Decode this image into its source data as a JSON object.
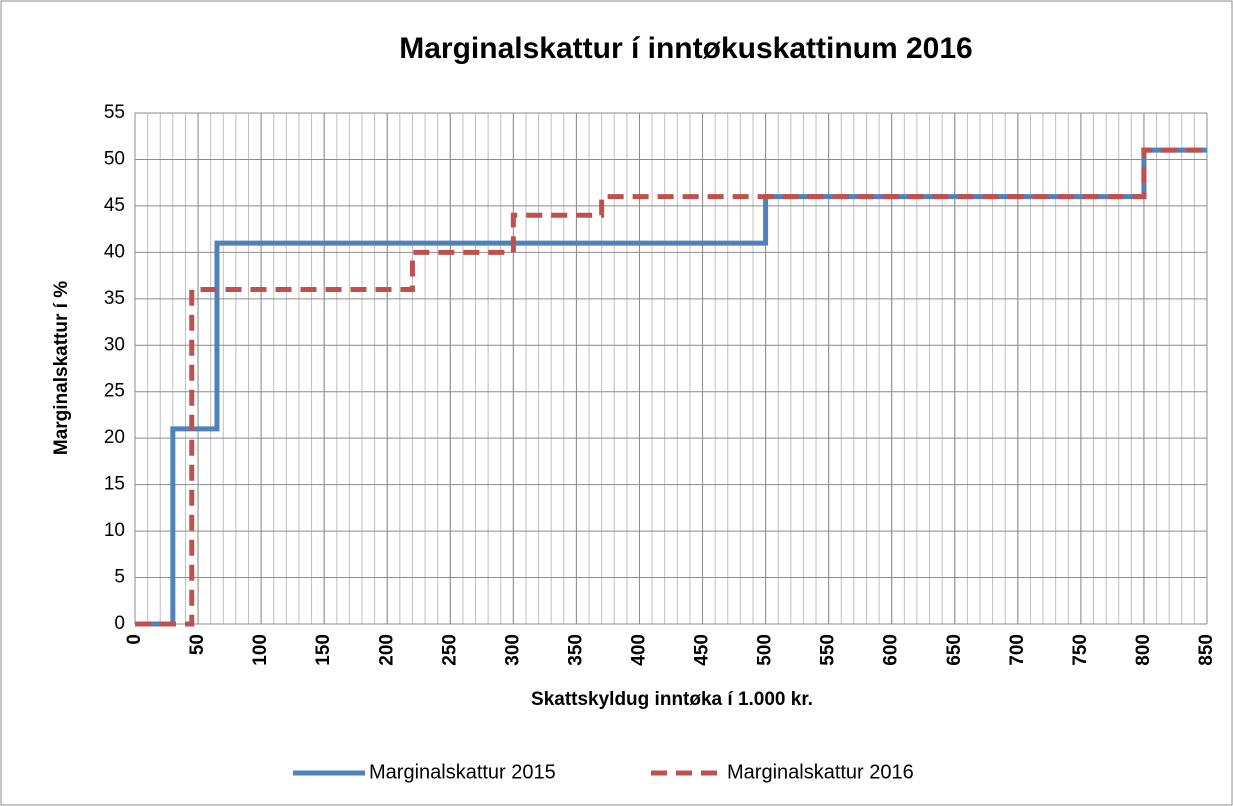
{
  "chart_data": {
    "type": "line",
    "title": "Marginalskattur í inntøkuskattinum 2016",
    "xlabel": "Skattskyldug inntøka í 1.000 kr.",
    "ylabel": "Marginalskattur í %",
    "xlim": [
      0,
      850
    ],
    "xticks": [
      0,
      50,
      100,
      150,
      200,
      250,
      300,
      350,
      400,
      450,
      500,
      550,
      600,
      650,
      700,
      750,
      800,
      850
    ],
    "ylim": [
      0,
      55
    ],
    "yticks": [
      0,
      5,
      10,
      15,
      20,
      25,
      30,
      35,
      40,
      45,
      50,
      55
    ],
    "grid": true,
    "x_minor_grid": 10,
    "legend": "bottom",
    "series": [
      {
        "name": "Marginalskattur 2015",
        "color": "#4f81bd",
        "style": "solid",
        "x": [
          0,
          30,
          30,
          65,
          65,
          500,
          500,
          800,
          800,
          850
        ],
        "values": [
          0,
          0,
          21,
          21,
          41,
          41,
          46,
          46,
          51,
          51
        ]
      },
      {
        "name": "Marginalskattur 2016",
        "color": "#c0504d",
        "style": "dashed",
        "x": [
          0,
          45,
          45,
          220,
          220,
          300,
          300,
          370,
          370,
          800,
          800,
          850
        ],
        "values": [
          0,
          0,
          36,
          36,
          40,
          40,
          44,
          44,
          46,
          46,
          51,
          51
        ]
      }
    ]
  }
}
